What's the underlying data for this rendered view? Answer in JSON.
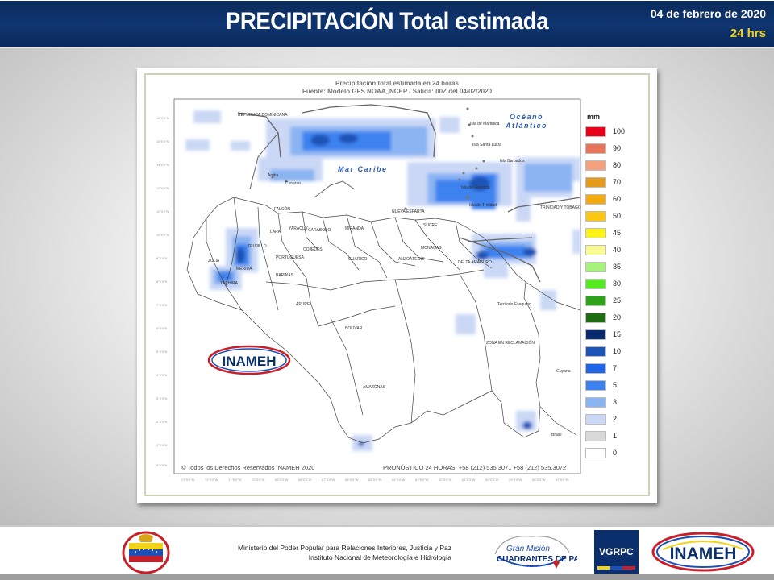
{
  "header": {
    "title": "PRECIPITACIÓN Total estimada",
    "date": "04 de febrero de 2020",
    "hours": "24 hrs"
  },
  "map": {
    "heading1": "Precipitación total estimada en 24 horas",
    "heading2": "Fuente: Modelo GFS NOAA_NCEP / Salida: 00Z del  04/02/2020",
    "sea_caribe": "Mar Caribe",
    "sea_oceano1": "Océano",
    "sea_oceano2": "Atlántico",
    "copyright": "© Todos los Derechos Reservados INAMEH 2020",
    "forecast": "PRONÓSTICO 24 HORAS: +58 (212) 535.3071 +58 (212) 535.3072",
    "inameh_logo_text": "INAMEH",
    "labels": [
      {
        "text": "REPÚBLICA DOMINICANA"
      },
      {
        "text": "Isla de Martinica"
      },
      {
        "text": "Isla Santa Lucía"
      },
      {
        "text": "Isla Barbados"
      },
      {
        "text": "Isla de Granada"
      },
      {
        "text": "Isla de Trinidad"
      },
      {
        "text": "TRINIDAD Y TOBAGO"
      },
      {
        "text": "NUEVA ESPARTA"
      },
      {
        "text": "FALCÓN"
      },
      {
        "text": "ZULIA"
      },
      {
        "text": "LARA"
      },
      {
        "text": "YARACUY"
      },
      {
        "text": "CARABOBO"
      },
      {
        "text": "MIRANDA"
      },
      {
        "text": "SUCRE"
      },
      {
        "text": "TRUJILLO"
      },
      {
        "text": "PORTUGUESA"
      },
      {
        "text": "COJEDES"
      },
      {
        "text": "GUÁRICO"
      },
      {
        "text": "ANZOÁTEGUI"
      },
      {
        "text": "MONAGAS"
      },
      {
        "text": "DELTA AMACURO"
      },
      {
        "text": "MÉRIDA"
      },
      {
        "text": "TÁCHIRA"
      },
      {
        "text": "BARINAS"
      },
      {
        "text": "APURE"
      },
      {
        "text": "BOLÍVAR"
      },
      {
        "text": "AMAZONAS"
      },
      {
        "text": "Territorio Esequibo"
      },
      {
        "text": "ZONA EN RECLAMACIÓN"
      },
      {
        "text": "Guyana"
      },
      {
        "text": "Brasil"
      },
      {
        "text": "Aruba"
      },
      {
        "text": "Curazao"
      }
    ]
  },
  "legend": {
    "unit": "mm",
    "items": [
      {
        "label": "100",
        "color": "#e8001a"
      },
      {
        "label": "90",
        "color": "#e9745a"
      },
      {
        "label": "80",
        "color": "#f5a07d"
      },
      {
        "label": "70",
        "color": "#e69a19"
      },
      {
        "label": "60",
        "color": "#f2aa0c"
      },
      {
        "label": "50",
        "color": "#fbc712"
      },
      {
        "label": "45",
        "color": "#fdf115"
      },
      {
        "label": "40",
        "color": "#fafa93"
      },
      {
        "label": "35",
        "color": "#a7f27d"
      },
      {
        "label": "30",
        "color": "#55ea22"
      },
      {
        "label": "25",
        "color": "#2fa21c"
      },
      {
        "label": "20",
        "color": "#1f6d12"
      },
      {
        "label": "15",
        "color": "#0a2a6e"
      },
      {
        "label": "10",
        "color": "#1b53b7"
      },
      {
        "label": "7",
        "color": "#2064e6"
      },
      {
        "label": "5",
        "color": "#3d82ef"
      },
      {
        "label": "3",
        "color": "#8bb4f2"
      },
      {
        "label": "2",
        "color": "#cad8f6"
      },
      {
        "label": "1",
        "color": "#d9d9d9"
      },
      {
        "label": "0",
        "color": "#ffffff"
      }
    ]
  },
  "footer": {
    "ministry_line1": "Ministerio del Poder Popular para Relaciones Interiores, Justicia y Paz",
    "ministry_line2": "Instituto  Nacional de Meteorología e Hidrología",
    "mision_line1": "Gran Misión",
    "mision_line2": "CUADRANTES DE PAZ",
    "vgrpc": "VGRPC",
    "inameh": "INAMEH"
  }
}
